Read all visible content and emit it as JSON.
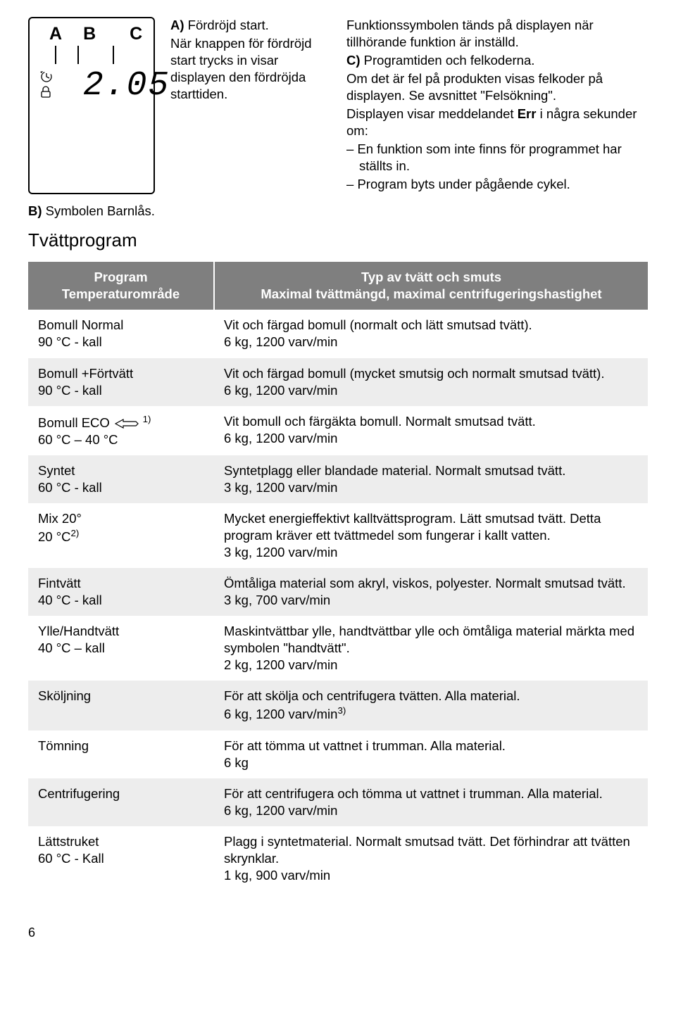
{
  "display": {
    "labels": [
      "A",
      "B",
      "C"
    ],
    "digits": "2.05"
  },
  "paraA": {
    "label": "A)",
    "title": "Fördröjd start.",
    "body": "När knappen för fördröjd start trycks in visar displayen den fördröjda starttiden."
  },
  "paraB": {
    "label": "B)",
    "text": "Symbolen Barnlås."
  },
  "rightBlock": {
    "line1": "Funktionssymbolen tänds på displayen när tillhörande funktion är inställd.",
    "cLabel": "C)",
    "cText": "Programtiden och felkoderna.",
    "line3": "Om det är fel på produkten visas felkoder på displayen. Se avsnittet \"Felsökning\".",
    "line4a": "Displayen visar meddelandet ",
    "line4err": "Err",
    "line4b": " i några sekunder om:",
    "bullets": [
      "En funktion som inte finns för programmet har ställts in.",
      "Program byts under pågående cykel."
    ]
  },
  "heading": "Tvättprogram",
  "table": {
    "header": {
      "col1a": "Program",
      "col1b": "Temperaturområde",
      "col2a": "Typ av tvätt och smuts",
      "col2b": "Maximal tvättmängd, maximal centrifugeringshastighet"
    },
    "rows": [
      {
        "c1a": "Bomull Normal",
        "c1b": "90 °C - kall",
        "c2": "Vit och färgad bomull (normalt och lätt smutsad tvätt).\n6 kg, 1200 varv/min"
      },
      {
        "c1a": "Bomull +Förtvätt",
        "c1b": "90 °C - kall",
        "c2": "Vit och färgad bomull (mycket smutsig och normalt smutsad tvätt).\n6 kg, 1200 varv/min"
      },
      {
        "c1a": "Bomull ECO",
        "c1b": "60 °C – 40 °C",
        "eco": true,
        "sup": "1)",
        "c2": "Vit bomull och färgäkta bomull. Normalt smutsad tvätt.\n6 kg, 1200 varv/min"
      },
      {
        "c1a": "Syntet",
        "c1b": "60 °C - kall",
        "c2": "Syntetplagg eller blandade material. Normalt smutsad tvätt.\n3 kg, 1200 varv/min"
      },
      {
        "c1a": "Mix 20°",
        "c1b": "20 °C",
        "sup2": "2)",
        "c2": "Mycket energieffektivt kalltvättsprogram. Lätt smutsad tvätt. Detta program kräver ett tvättmedel som fungerar i kallt vatten.\n3 kg, 1200 varv/min"
      },
      {
        "c1a": "Fintvätt",
        "c1b": "40 °C - kall",
        "c2": "Ömtåliga material som akryl, viskos, polyester. Normalt smutsad tvätt.\n3 kg, 700 varv/min"
      },
      {
        "c1a": "Ylle/Handtvätt",
        "c1b": "40 °C – kall",
        "c2": "Maskintvättbar ylle, handtvättbar ylle och ömtåliga material märkta med symbolen \"handtvätt\".\n2 kg, 1200 varv/min"
      },
      {
        "c1a": "Sköljning",
        "c1b": "",
        "c2": "För att skölja och centrifugera tvätten. Alla material.\n6 kg, 1200 varv/min",
        "supEnd": "3)"
      },
      {
        "c1a": "Tömning",
        "c1b": "",
        "c2": "För att tömma ut vattnet i trumman. Alla material.\n6 kg"
      },
      {
        "c1a": "Centrifugering",
        "c1b": "",
        "c2": "För att centrifugera och tömma ut vattnet i trumman. Alla material.\n6 kg, 1200 varv/min"
      },
      {
        "c1a": "Lättstruket",
        "c1b": "60 °C - Kall",
        "c2": "Plagg i syntetmaterial. Normalt smutsad tvätt. Det förhindrar att tvätten skrynklar.\n1 kg, 900 varv/min"
      }
    ]
  },
  "pageNumber": "6",
  "style": {
    "header_bg": "#7f7f7f",
    "header_fg": "#ffffff",
    "alt_row_bg": "#ededed",
    "background": "#ffffff",
    "text_color": "#000000"
  }
}
